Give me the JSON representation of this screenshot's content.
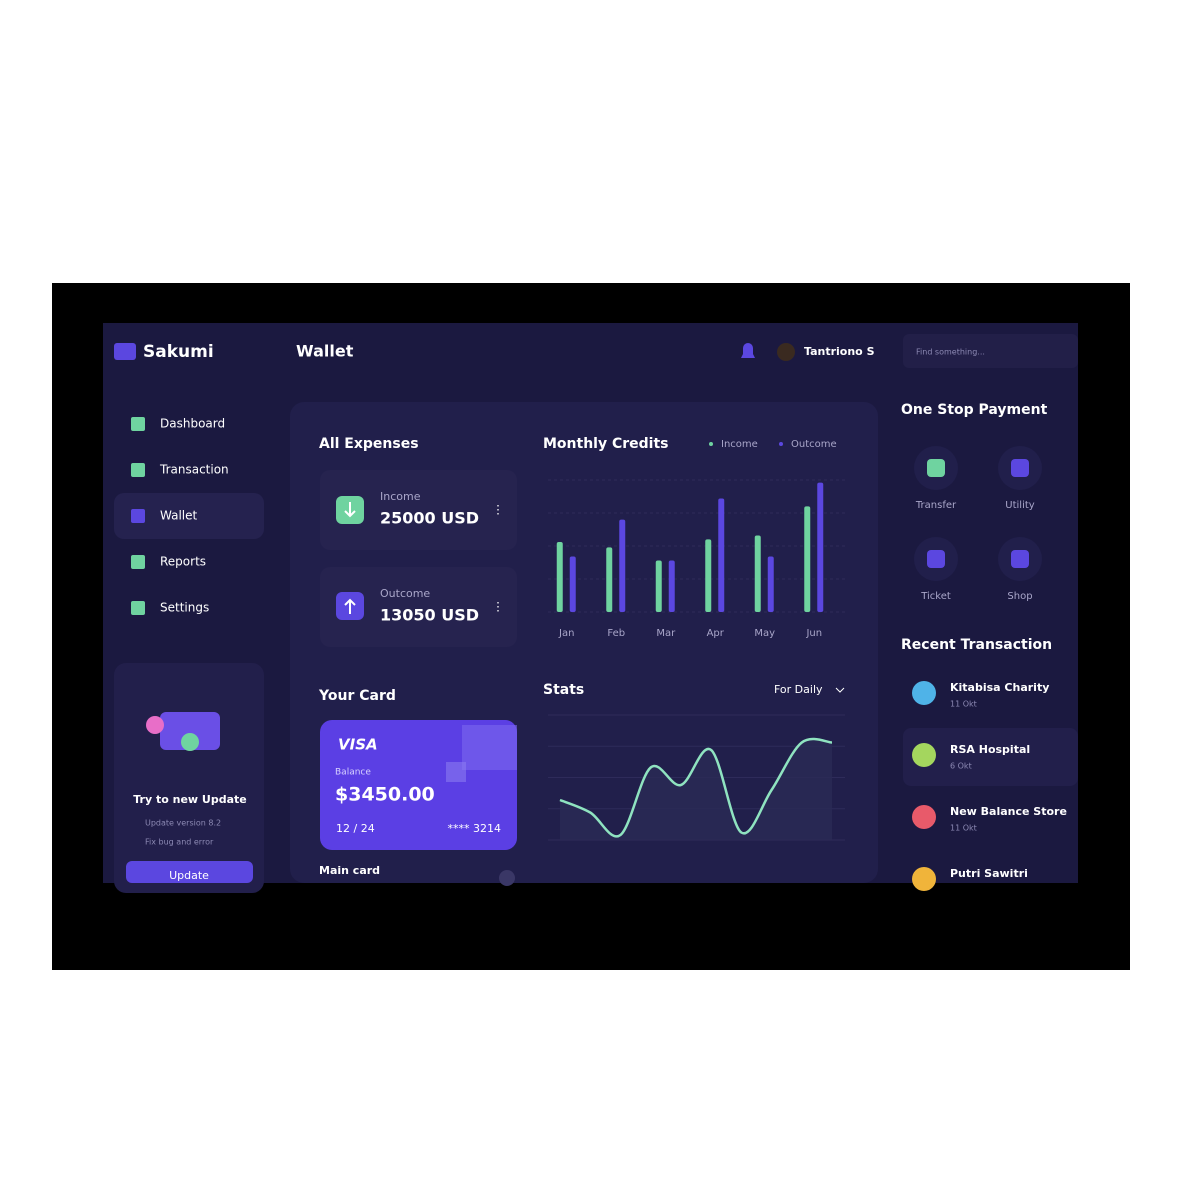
{
  "header": {
    "brand": "Sakumi",
    "page_title": "Wallet",
    "user": "Tantriono S",
    "search_placeholder": "Find something..."
  },
  "sidebar": {
    "nav": [
      "Dashboard",
      "Transaction",
      "Wallet",
      "Reports",
      "Settings"
    ],
    "update_card": {
      "title": "Try to new Update",
      "items": [
        "Update version 8.2",
        "Fix bug and error"
      ],
      "button": "Update"
    }
  },
  "expenses": {
    "title": "All Expenses",
    "income": {
      "label": "Income",
      "amount": "25000 USD"
    },
    "outcome": {
      "label": "Outcome",
      "amount": "13050 USD"
    }
  },
  "monthly_credits": {
    "chart_data": {
      "type": "bar",
      "title": "Monthly Credits",
      "categories": [
        "Jan",
        "Feb",
        "Mar",
        "Apr",
        "May",
        "Jun"
      ],
      "series": [
        {
          "name": "Income",
          "color": "#6fd3a0",
          "values": [
            53,
            49,
            39,
            55,
            58,
            80
          ]
        },
        {
          "name": "Outcome",
          "color": "#5b47e0",
          "values": [
            42,
            70,
            39,
            86,
            42,
            98
          ]
        }
      ],
      "ylim": [
        0,
        100
      ],
      "yticks": [
        0,
        25,
        50,
        75,
        100
      ],
      "grid": true
    }
  },
  "card": {
    "title": "Your Card",
    "brand": "VISA",
    "balance_label": "Balance",
    "balance": "$3450.00",
    "expiry": "12 / 24",
    "number": "**** 3214",
    "footer": "Main card"
  },
  "stats": {
    "chart_data": {
      "type": "line",
      "title": "Stats",
      "period": "For Daily",
      "color": "#8fe3c0",
      "values": [
        32,
        22,
        4,
        58,
        44,
        72,
        6,
        40,
        78,
        78
      ],
      "ylim": [
        0,
        100
      ],
      "yticks": [
        0,
        25,
        50,
        75,
        100
      ],
      "grid": true
    }
  },
  "payment": {
    "title": "One Stop Payment",
    "items": [
      "Transfer",
      "Utility",
      "Ticket",
      "Shop"
    ]
  },
  "recent": {
    "title": "Recent Transaction",
    "items": [
      {
        "name": "Kitabisa Charity",
        "date": "11 Okt"
      },
      {
        "name": "RSA Hospital",
        "date": "6 Okt"
      },
      {
        "name": "New Balance Store",
        "date": "11 Okt"
      },
      {
        "name": "Putri Sawitri"
      }
    ]
  }
}
